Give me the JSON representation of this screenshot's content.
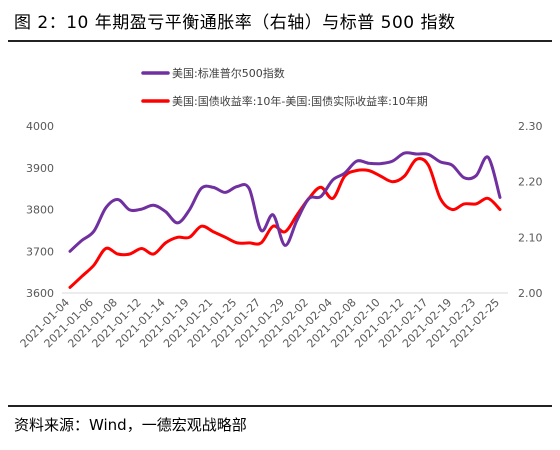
{
  "title": "图 2：10 年期盈亏平衡通胀率（右轴）与标普 500 指数",
  "source": "资料来源：Wind，一德宏观战略部",
  "chart_data": {
    "type": "line",
    "x": [
      "2021-01-04",
      "2021-01-05",
      "2021-01-06",
      "2021-01-07",
      "2021-01-08",
      "2021-01-11",
      "2021-01-12",
      "2021-01-13",
      "2021-01-14",
      "2021-01-15",
      "2021-01-19",
      "2021-01-20",
      "2021-01-21",
      "2021-01-22",
      "2021-01-25",
      "2021-01-26",
      "2021-01-27",
      "2021-01-28",
      "2021-01-29",
      "2021-02-01",
      "2021-02-02",
      "2021-02-03",
      "2021-02-04",
      "2021-02-05",
      "2021-02-08",
      "2021-02-09",
      "2021-02-10",
      "2021-02-11",
      "2021-02-12",
      "2021-02-16",
      "2021-02-17",
      "2021-02-18",
      "2021-02-19",
      "2021-02-22",
      "2021-02-23",
      "2021-02-24",
      "2021-02-25"
    ],
    "x_tick_labels": [
      "2021-01-04",
      "2021-01-06",
      "2021-01-08",
      "2021-01-12",
      "2021-01-14",
      "2021-01-19",
      "2021-01-21",
      "2021-01-25",
      "2021-01-27",
      "2021-01-29",
      "2021-02-02",
      "2021-02-04",
      "2021-02-08",
      "2021-02-10",
      "2021-02-12",
      "2021-02-17",
      "2021-02-19",
      "2021-02-23",
      "2021-02-25"
    ],
    "y_left": {
      "ylim": [
        3600,
        4000
      ],
      "ticks": [
        3600,
        3700,
        3800,
        3900,
        4000
      ]
    },
    "y_right": {
      "ylim": [
        2.0,
        2.3
      ],
      "ticks": [
        "2.00",
        "2.10",
        "2.20",
        "2.30"
      ]
    },
    "grid": false,
    "legend_placement": "top",
    "series": [
      {
        "name": "美国:标准普尔500指数",
        "axis": "left",
        "color": "#7030A0",
        "values": [
          3700,
          3726,
          3748,
          3804,
          3824,
          3799,
          3801,
          3810,
          3795,
          3768,
          3799,
          3851,
          3853,
          3841,
          3855,
          3850,
          3750,
          3787,
          3714,
          3774,
          3826,
          3831,
          3871,
          3887,
          3916,
          3911,
          3910,
          3916,
          3935,
          3933,
          3932,
          3914,
          3906,
          3876,
          3881,
          3925,
          3829
        ]
      },
      {
        "name": "美国:国债收益率:10年-美国:国债实际收益率:10年期",
        "axis": "right",
        "color": "#FF0000",
        "values": [
          2.01,
          2.03,
          2.05,
          2.08,
          2.07,
          2.07,
          2.08,
          2.07,
          2.09,
          2.1,
          2.1,
          2.12,
          2.11,
          2.1,
          2.09,
          2.09,
          2.09,
          2.12,
          2.11,
          2.14,
          2.17,
          2.19,
          2.17,
          2.21,
          2.22,
          2.22,
          2.21,
          2.2,
          2.21,
          2.24,
          2.23,
          2.17,
          2.15,
          2.16,
          2.16,
          2.17,
          2.15
        ]
      }
    ]
  }
}
